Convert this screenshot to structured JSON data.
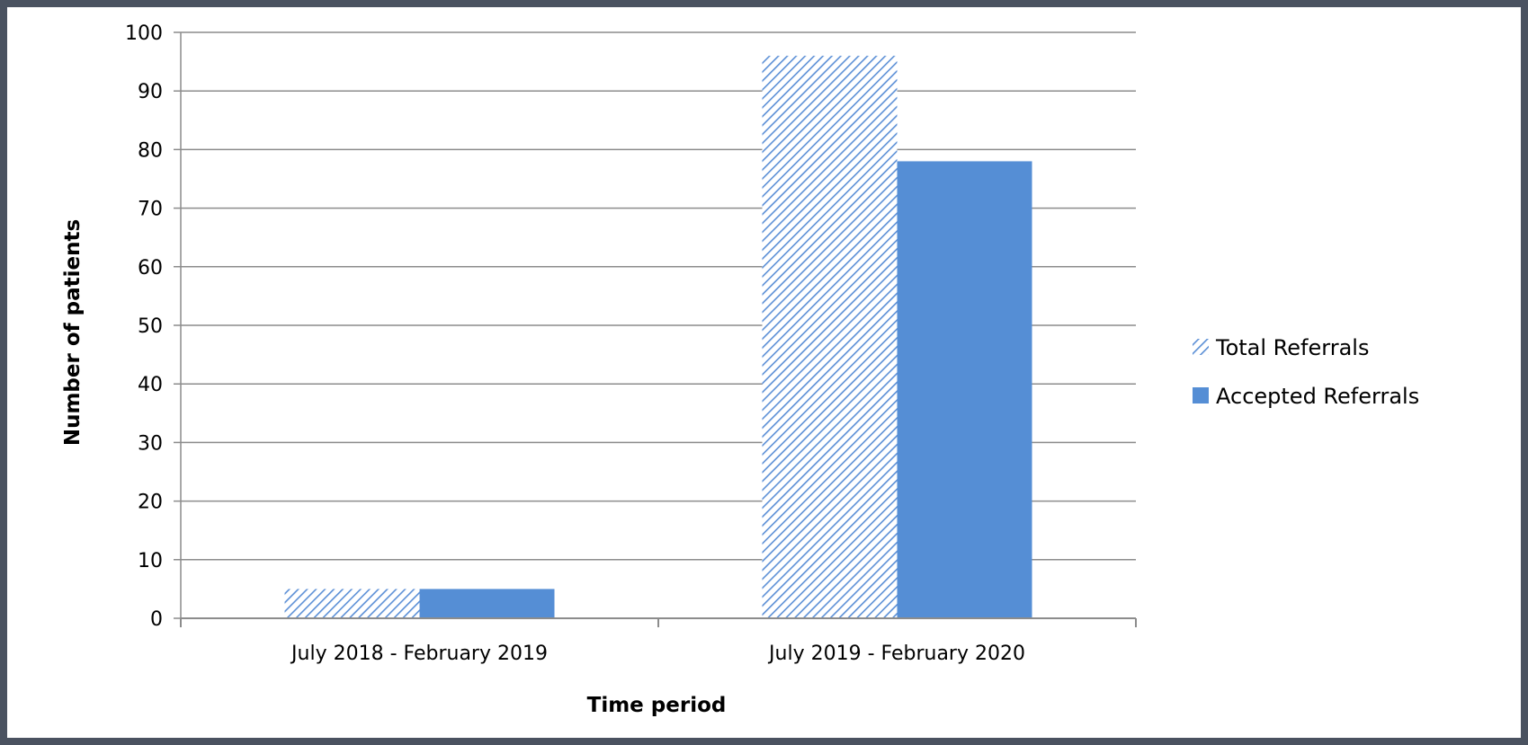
{
  "chart_data": {
    "type": "bar",
    "categories": [
      "July 2018 - February 2019",
      "July 2019 - February 2020"
    ],
    "series": [
      {
        "name": "Total Referrals",
        "values": [
          5,
          96
        ],
        "color": "#5b8fd6",
        "pattern": "diagonal-hatch"
      },
      {
        "name": "Accepted Referrals",
        "values": [
          5,
          78
        ],
        "color": "#558ed5",
        "pattern": "solid"
      }
    ],
    "title": "",
    "xlabel": "Time period",
    "ylabel": "Number of patients",
    "ylim": [
      0,
      100
    ],
    "yticks": [
      0,
      10,
      20,
      30,
      40,
      50,
      60,
      70,
      80,
      90,
      100
    ],
    "grid": true,
    "legend": "right"
  }
}
